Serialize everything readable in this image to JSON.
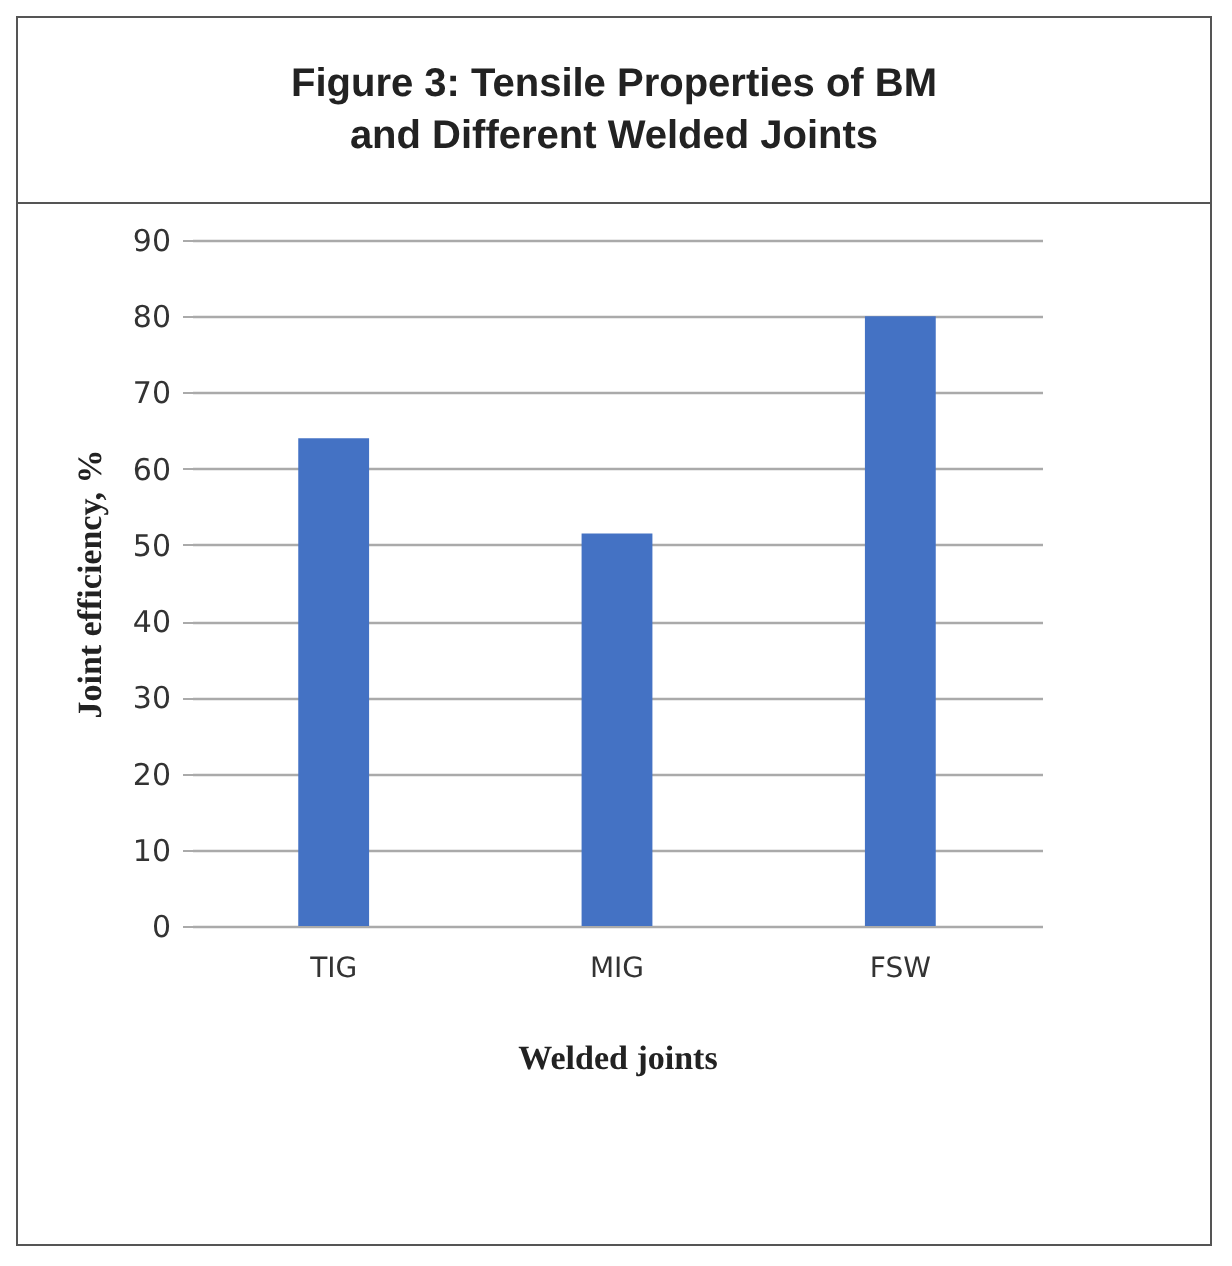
{
  "chart_data": {
    "type": "bar",
    "title": "Figure 3: Tensile Properties of BM\nand Different Welded Joints",
    "xlabel": "Welded joints",
    "ylabel": "Joint efficiency, %",
    "categories": [
      "TIG",
      "MIG",
      "FSW"
    ],
    "values": [
      64,
      51.5,
      80
    ],
    "color": "#4472c4",
    "ylim": [
      0,
      90
    ],
    "yticks": [
      0,
      10,
      20,
      30,
      40,
      50,
      60,
      70,
      80,
      90
    ],
    "grid": "y"
  }
}
